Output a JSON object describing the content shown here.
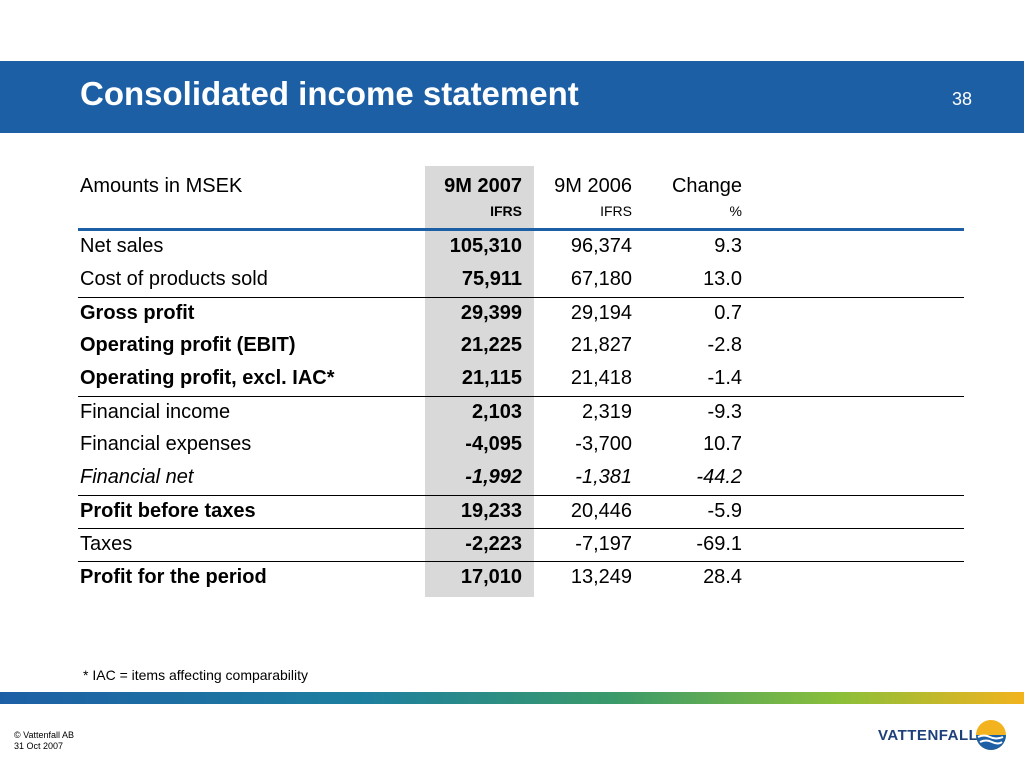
{
  "header": {
    "title": "Consolidated income statement",
    "page_number": "38"
  },
  "table": {
    "columns": [
      {
        "main": "Amounts in MSEK",
        "sub": ""
      },
      {
        "main": "9M 2007",
        "sub": "IFRS"
      },
      {
        "main": "9M 2006",
        "sub": "IFRS"
      },
      {
        "main": "Change",
        "sub": "%"
      }
    ],
    "rows": [
      {
        "label": "Net sales",
        "cur": "105,310",
        "prev": "96,374",
        "chg": "9.3"
      },
      {
        "label": "Cost of products sold",
        "cur": "75,911",
        "prev": "67,180",
        "chg": "13.0"
      },
      {
        "label": "Gross profit",
        "cur": "29,399",
        "prev": "29,194",
        "chg": "0.7"
      },
      {
        "label": "Operating profit (EBIT)",
        "cur": "21,225",
        "prev": "21,827",
        "chg": "-2.8"
      },
      {
        "label": "Operating profit, excl. IAC*",
        "cur": "21,115",
        "prev": "21,418",
        "chg": "-1.4"
      },
      {
        "label": "Financial income",
        "cur": "2,103",
        "prev": "2,319",
        "chg": "-9.3"
      },
      {
        "label": "Financial expenses",
        "cur": "-4,095",
        "prev": "-3,700",
        "chg": "10.7"
      },
      {
        "label": "Financial net",
        "cur": "-1,992",
        "prev": "-1,381",
        "chg": "-44.2"
      },
      {
        "label": "Profit before taxes",
        "cur": "19,233",
        "prev": "20,446",
        "chg": "-5.9"
      },
      {
        "label": "Taxes",
        "cur": "-2,223",
        "prev": "-7,197",
        "chg": "-69.1"
      },
      {
        "label": "Profit for the period",
        "cur": "17,010",
        "prev": "13,249",
        "chg": "28.4"
      }
    ]
  },
  "footnote": "* IAC =  items affecting comparability",
  "footer": {
    "copyright": "© Vattenfall AB",
    "date": "31 Oct 2007",
    "logo_text": "VATTENFALL"
  },
  "colors": {
    "brand_blue": "#1d5fa5",
    "shade": "#d9d9d9",
    "logo_yellow": "#f2b31e"
  }
}
